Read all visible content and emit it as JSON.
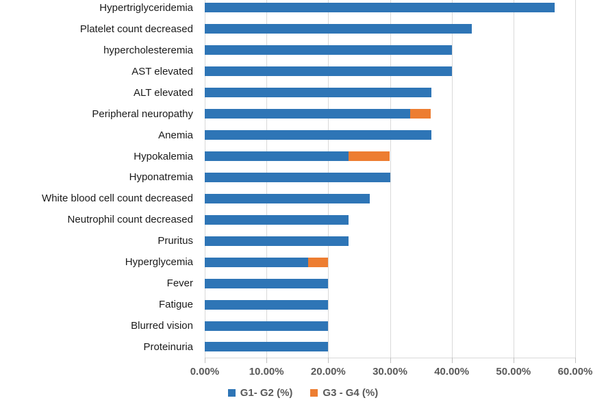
{
  "chart_data": {
    "type": "bar",
    "orientation": "horizontal",
    "stacked": true,
    "title": "",
    "xlabel": "",
    "ylabel": "",
    "grid": true,
    "categories": [
      "Hypertriglyceridemia",
      "Platelet count decreased",
      "hypercholesteremia",
      "AST elevated",
      "ALT elevated",
      "Peripheral neuropathy",
      "Anemia",
      "Hypokalemia",
      "Hyponatremia",
      "White blood cell count decreased",
      "Neutrophil count decreased",
      "Pruritus",
      "Hyperglycemia",
      "Fever",
      "Fatigue",
      "Blurred vision",
      "Proteinuria"
    ],
    "series": [
      {
        "name": "G1- G2 (%)",
        "color": "#2E75B6",
        "values": [
          56.7,
          43.3,
          40.0,
          40.0,
          36.7,
          33.3,
          36.7,
          23.3,
          30.0,
          26.7,
          23.3,
          23.3,
          16.7,
          20.0,
          20.0,
          20.0,
          20.0
        ]
      },
      {
        "name": "G3 - G4 (%)",
        "color": "#ED7D31",
        "values": [
          0,
          0,
          0,
          0,
          0,
          3.3,
          0,
          6.7,
          0,
          0,
          0,
          0,
          3.3,
          0,
          0,
          0,
          0
        ]
      }
    ],
    "x_axis": {
      "min": 0,
      "max": 60,
      "ticks": [
        "0.00%",
        "10.00%",
        "20.00%",
        "30.00%",
        "40.00%",
        "50.00%",
        "60.00%"
      ]
    },
    "legend": {
      "position": "bottom"
    },
    "style": {
      "gridline_color": "#D9D9D9",
      "tick_mark_color": "#BFBFBF",
      "axis_text_color": "#595959",
      "category_text_color": "#1A1A1A"
    }
  }
}
